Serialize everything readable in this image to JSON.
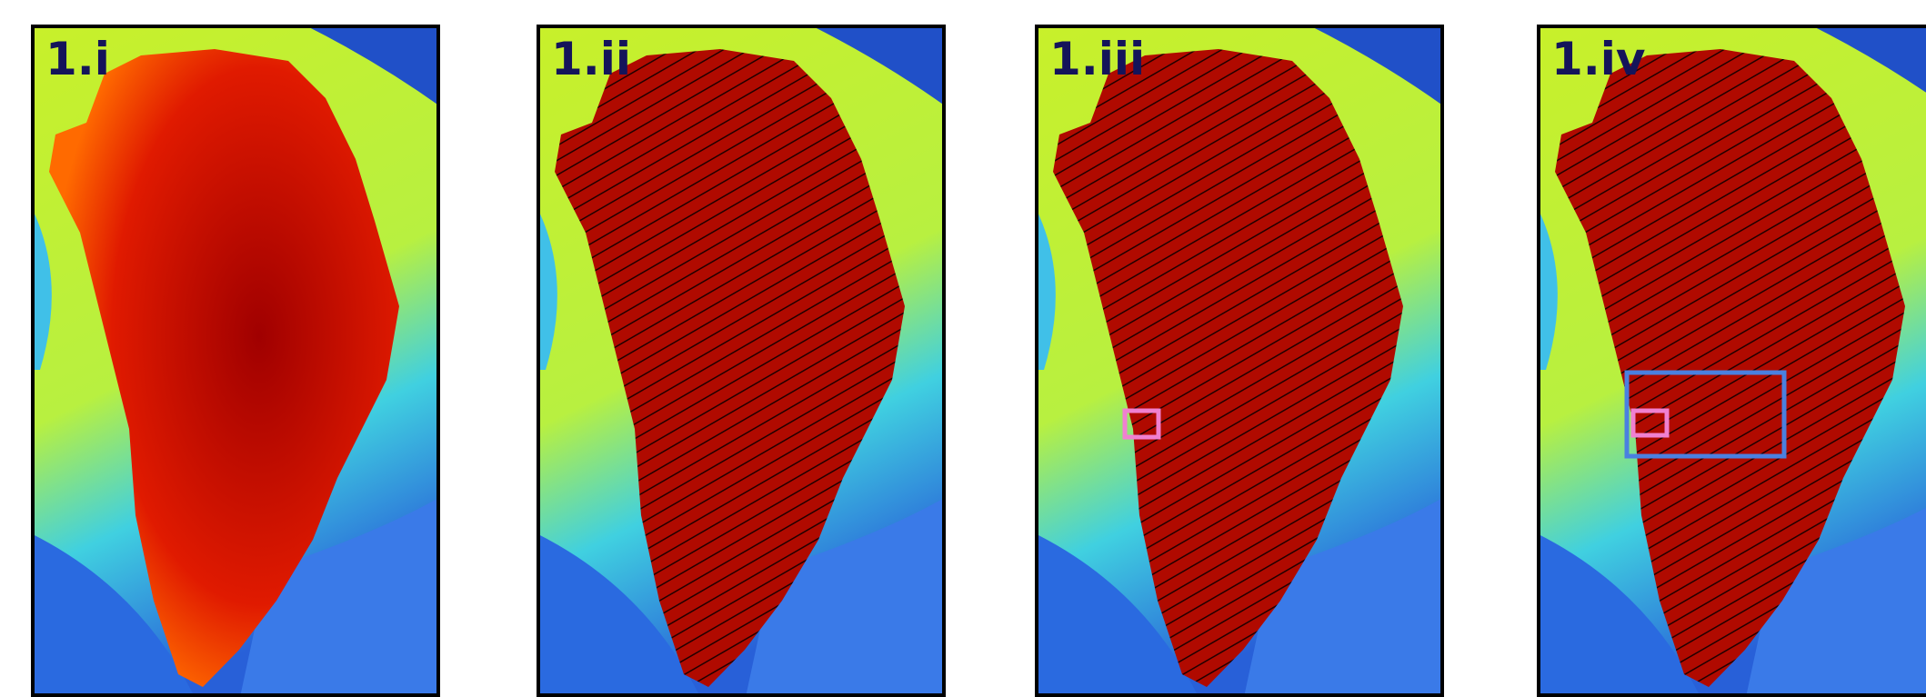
{
  "panels": [
    {
      "label": "1.i"
    },
    {
      "label": "1.ii"
    },
    {
      "label": "1.iii"
    },
    {
      "label": "1.iv"
    }
  ]
}
